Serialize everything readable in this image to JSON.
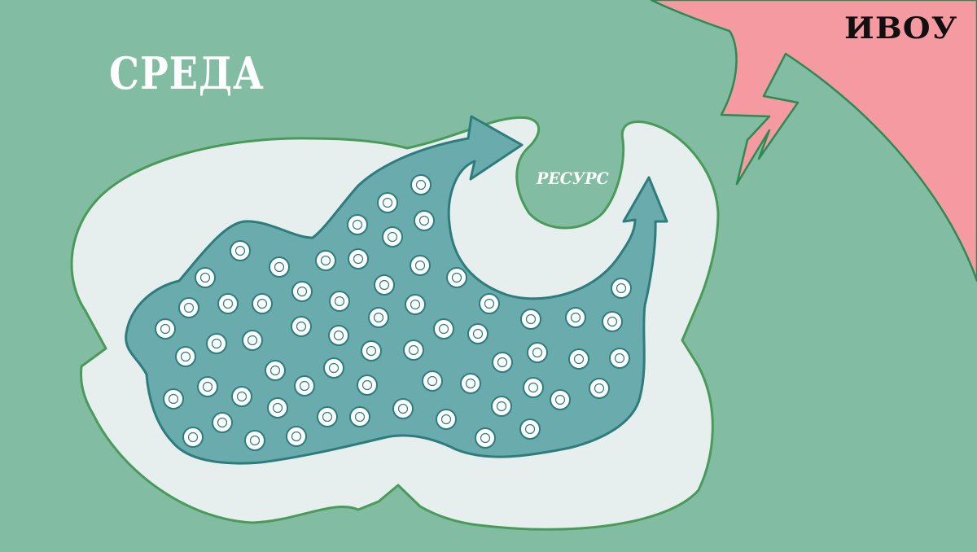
{
  "environment": {
    "label": "СРЕДА"
  },
  "resource": {
    "label": "РЕСУРС"
  },
  "threat": {
    "label": "ИВОУ"
  },
  "colors": {
    "background": "#82bda3",
    "boundary_fill": "#e6eeee",
    "boundary_stroke": "#4a9a5a",
    "body_fill": "#6aabae",
    "body_stroke": "#2f7c7c",
    "threat_fill": "#f59aa0",
    "threat_stroke": "#2c8a52"
  },
  "icons": [
    "cell-icon",
    "arrow-up-icon",
    "lightning-bolt-icon"
  ]
}
